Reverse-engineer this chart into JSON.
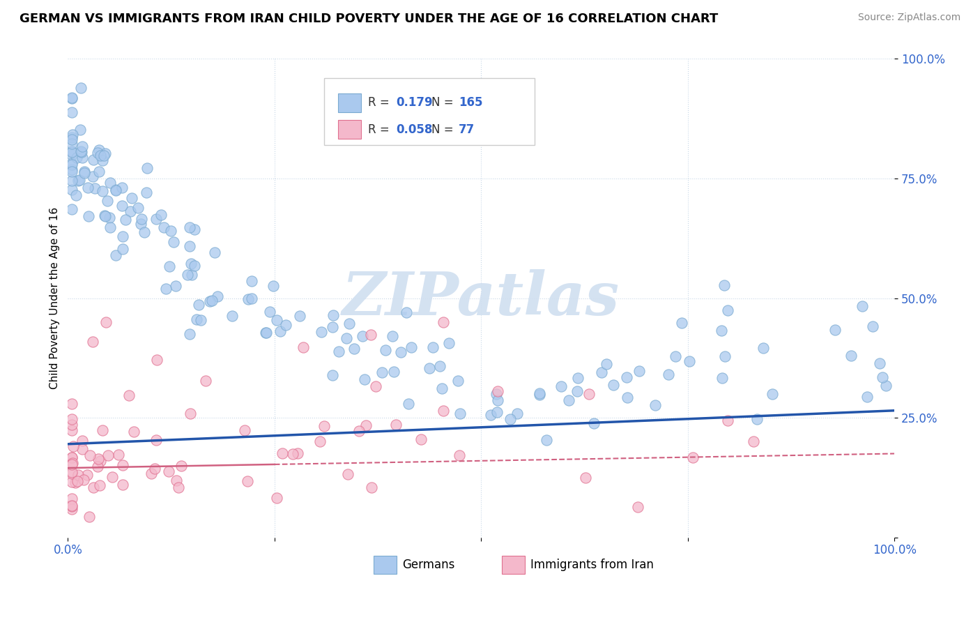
{
  "title": "GERMAN VS IMMIGRANTS FROM IRAN CHILD POVERTY UNDER THE AGE OF 16 CORRELATION CHART",
  "source": "Source: ZipAtlas.com",
  "ylabel": "Child Poverty Under the Age of 16",
  "xlim": [
    0,
    1.0
  ],
  "ylim": [
    0,
    1.0
  ],
  "german_R": "0.179",
  "german_N": "165",
  "iran_R": "0.058",
  "iran_N": "77",
  "german_color": "#aac9ee",
  "german_edge_color": "#7aaad0",
  "iran_color": "#f4b8cb",
  "iran_edge_color": "#e07090",
  "watermark_color": "#d0dff0",
  "background_color": "#ffffff",
  "grid_color": "#c8d8e8",
  "german_line_color": "#2255aa",
  "iran_line_color": "#d06080",
  "legend_box_color": "#ffffff",
  "legend_border_color": "#cccccc",
  "tick_color": "#3366cc",
  "title_fontsize": 13,
  "source_fontsize": 10,
  "tick_fontsize": 12,
  "ylabel_fontsize": 11,
  "german_line_y0": 0.195,
  "german_line_y1": 0.265,
  "iran_line_y0": 0.145,
  "iran_line_y1": 0.175
}
